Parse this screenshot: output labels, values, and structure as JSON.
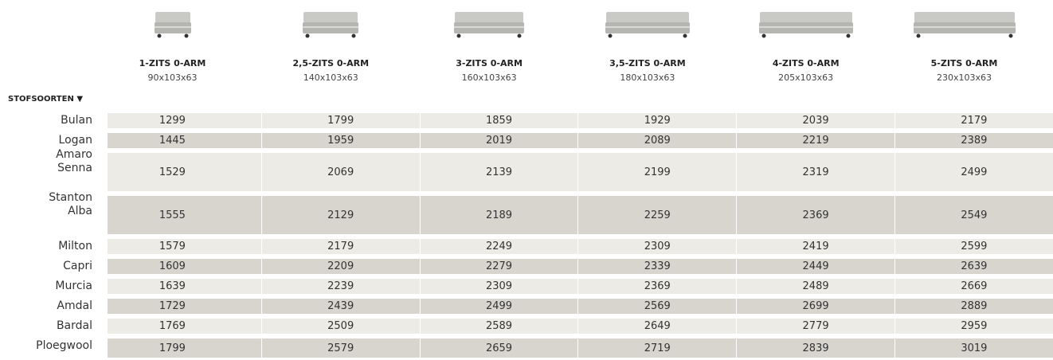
{
  "header": {
    "fabric_label": "STOFSOORTEN ▼"
  },
  "columns": [
    {
      "name": "1-ZITS 0-ARM",
      "size": "90x103x63"
    },
    {
      "name": "2,5-ZITS 0-ARM",
      "size": "140x103x63"
    },
    {
      "name": "3-ZITS 0-ARM",
      "size": "160x103x63"
    },
    {
      "name": "3,5-ZITS 0-ARM",
      "size": "180x103x63"
    },
    {
      "name": "4-ZITS 0-ARM",
      "size": "205x103x63"
    },
    {
      "name": "5-ZITS 0-ARM",
      "size": "230x103x63"
    }
  ],
  "rows": [
    {
      "label": [
        "Bulan"
      ],
      "prices": [
        1299,
        1799,
        1859,
        1929,
        2039,
        2179
      ]
    },
    {
      "label": [
        "Logan"
      ],
      "prices": [
        1445,
        1959,
        2019,
        2089,
        2219,
        2389
      ]
    },
    {
      "label": [
        "Amaro",
        "Senna"
      ],
      "prices": [
        1529,
        2069,
        2139,
        2199,
        2319,
        2499
      ]
    },
    {
      "label": [
        "Stanton",
        "Alba"
      ],
      "prices": [
        1555,
        2129,
        2189,
        2259,
        2369,
        2549
      ]
    },
    {
      "label": [
        "Milton"
      ],
      "prices": [
        1579,
        2179,
        2249,
        2309,
        2419,
        2599
      ]
    },
    {
      "label": [
        "Capri"
      ],
      "prices": [
        1609,
        2209,
        2279,
        2339,
        2449,
        2639
      ]
    },
    {
      "label": [
        "Murcia"
      ],
      "prices": [
        1639,
        2239,
        2309,
        2369,
        2489,
        2669
      ]
    },
    {
      "label": [
        "Amdal"
      ],
      "prices": [
        1729,
        2439,
        2499,
        2569,
        2699,
        2889
      ]
    },
    {
      "label": [
        "Bardal"
      ],
      "prices": [
        1769,
        2509,
        2589,
        2649,
        2779,
        2959
      ]
    },
    {
      "label": [
        "Ploegwool"
      ],
      "prices": [
        1799,
        2579,
        2659,
        2719,
        2839,
        3019
      ]
    }
  ]
}
